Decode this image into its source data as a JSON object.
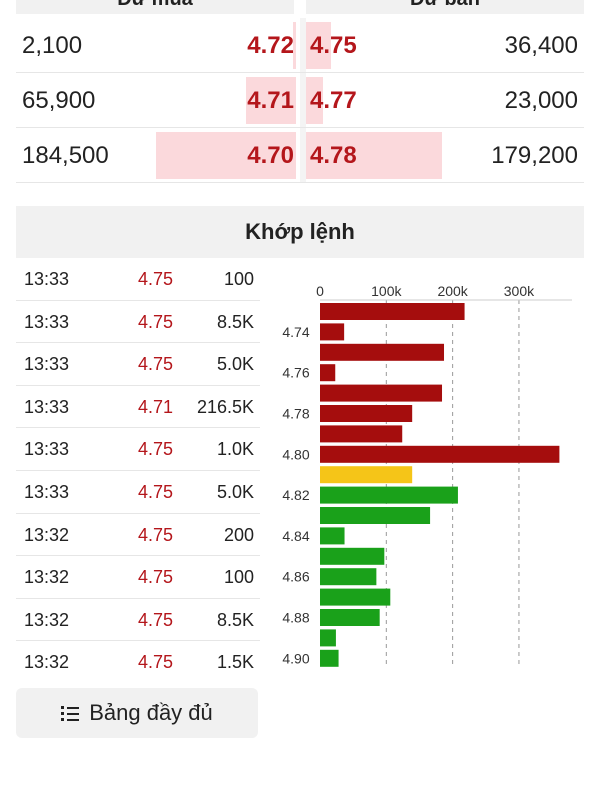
{
  "order_book": {
    "bid_header": "Dư mua",
    "ask_header": "Dư bán",
    "rows": [
      {
        "bid_volume": "2,100",
        "bid_price": "4.72",
        "bid_fill": 0.02,
        "ask_price": "4.75",
        "ask_volume": "36,400",
        "ask_fill": 0.18
      },
      {
        "bid_volume": "65,900",
        "bid_price": "4.71",
        "bid_fill": 0.36,
        "ask_price": "4.77",
        "ask_volume": "23,000",
        "ask_fill": 0.12
      },
      {
        "bid_volume": "184,500",
        "bid_price": "4.70",
        "bid_fill": 1.0,
        "ask_price": "4.78",
        "ask_volume": "179,200",
        "ask_fill": 0.97
      }
    ]
  },
  "match": {
    "title": "Khớp lệnh",
    "trades": [
      {
        "time": "13:33",
        "price": "4.75",
        "volume": "100"
      },
      {
        "time": "13:33",
        "price": "4.75",
        "volume": "8.5K"
      },
      {
        "time": "13:33",
        "price": "4.75",
        "volume": "5.0K"
      },
      {
        "time": "13:33",
        "price": "4.71",
        "volume": "216.5K"
      },
      {
        "time": "13:33",
        "price": "4.75",
        "volume": "1.0K"
      },
      {
        "time": "13:33",
        "price": "4.75",
        "volume": "5.0K"
      },
      {
        "time": "13:32",
        "price": "4.75",
        "volume": "200"
      },
      {
        "time": "13:32",
        "price": "4.75",
        "volume": "100"
      },
      {
        "time": "13:32",
        "price": "4.75",
        "volume": "8.5K"
      },
      {
        "time": "13:32",
        "price": "4.75",
        "volume": "1.5K"
      }
    ],
    "full_table_label": "Bảng đầy đủ",
    "full_table_icon": "list-icon"
  },
  "colors": {
    "price_red": "#b4161b",
    "bar_red": "#a50d0d",
    "bar_yellow": "#f5c518",
    "bar_green": "#1aa11a",
    "bid_fill": "#fbd9dc"
  },
  "chart_data": {
    "type": "bar",
    "orientation": "horizontal",
    "x_ticks": [
      "0",
      "100k",
      "200k",
      "300k"
    ],
    "xlim": [
      0,
      380000
    ],
    "y_tick_labels": [
      "4.74",
      "4.76",
      "4.78",
      "4.80",
      "4.82",
      "4.84",
      "4.86",
      "4.88",
      "4.90"
    ],
    "grid": "vertical dashed",
    "bars": [
      {
        "price": 4.73,
        "value": 218000,
        "color": "red"
      },
      {
        "price": 4.74,
        "value": 36400,
        "color": "red"
      },
      {
        "price": 4.75,
        "value": 187000,
        "color": "red"
      },
      {
        "price": 4.76,
        "value": 23000,
        "color": "red"
      },
      {
        "price": 4.77,
        "value": 184000,
        "color": "red"
      },
      {
        "price": 4.78,
        "value": 139000,
        "color": "red"
      },
      {
        "price": 4.79,
        "value": 124000,
        "color": "red"
      },
      {
        "price": 4.8,
        "value": 361000,
        "color": "red"
      },
      {
        "price": 4.81,
        "value": 139000,
        "color": "yellow"
      },
      {
        "price": 4.82,
        "value": 208000,
        "color": "green"
      },
      {
        "price": 4.83,
        "value": 166000,
        "color": "green"
      },
      {
        "price": 4.84,
        "value": 37000,
        "color": "green"
      },
      {
        "price": 4.85,
        "value": 97000,
        "color": "green"
      },
      {
        "price": 4.86,
        "value": 85000,
        "color": "green"
      },
      {
        "price": 4.87,
        "value": 106000,
        "color": "green"
      },
      {
        "price": 4.88,
        "value": 90000,
        "color": "green"
      },
      {
        "price": 4.89,
        "value": 24000,
        "color": "green"
      },
      {
        "price": 4.9,
        "value": 28000,
        "color": "green"
      }
    ]
  }
}
